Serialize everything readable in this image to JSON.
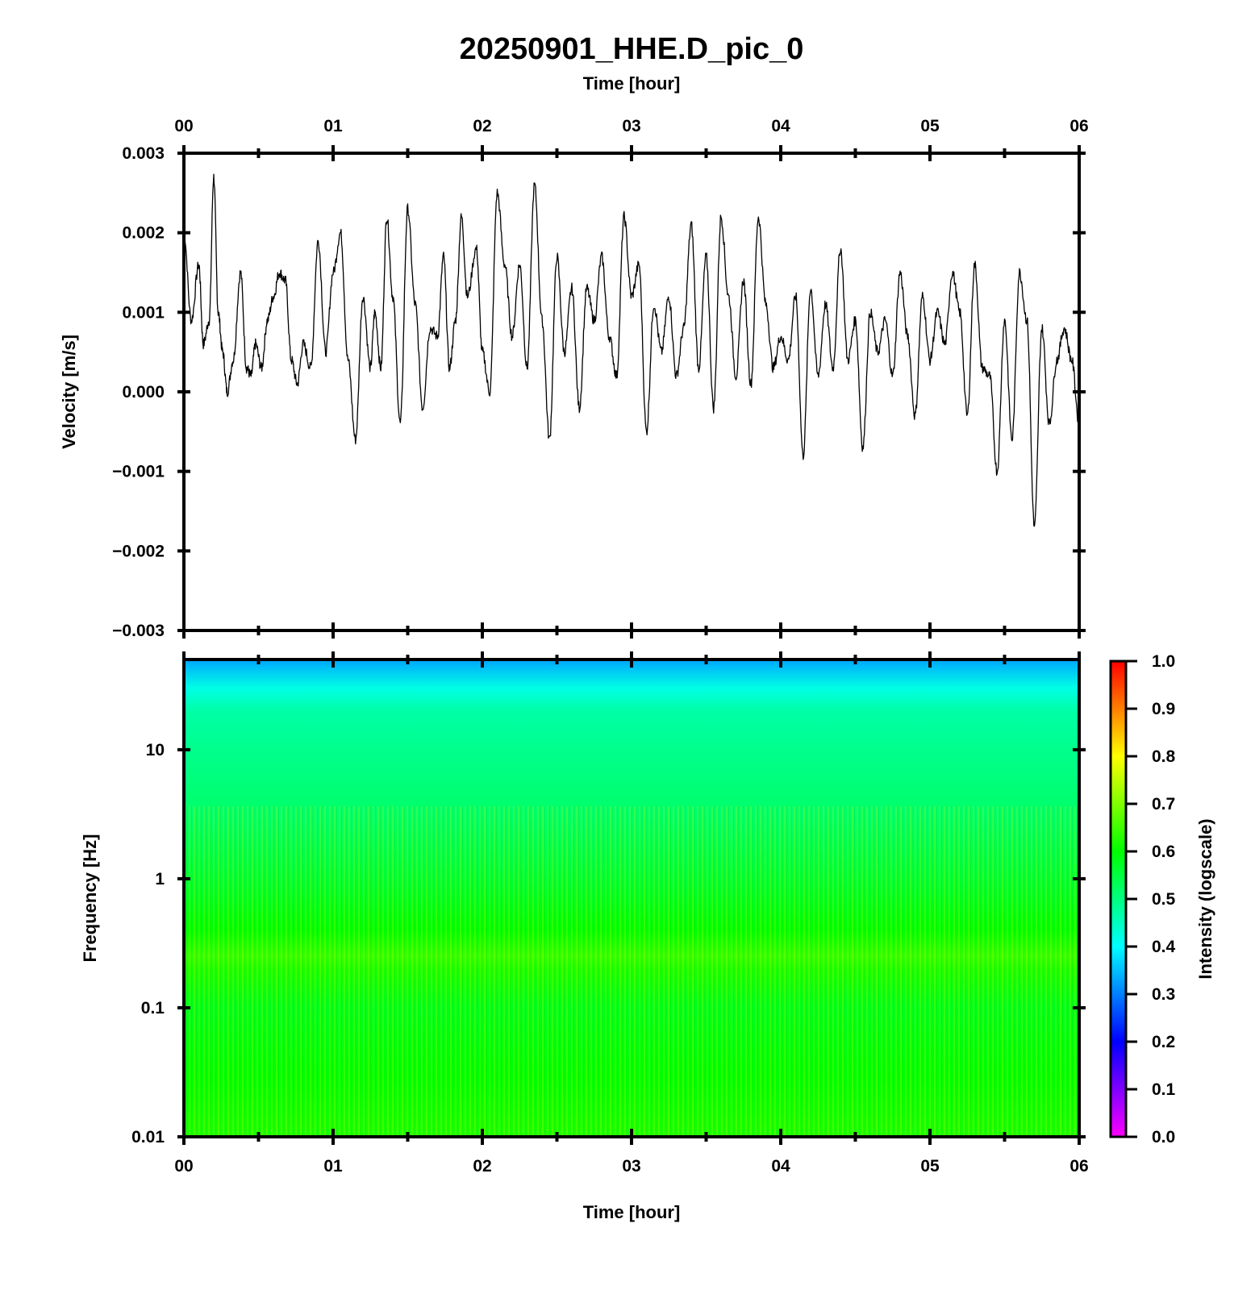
{
  "chart_data": [
    {
      "type": "line",
      "title": "20250901_HHE.D_pic_0",
      "xlabel": "Time [hour]",
      "ylabel": "Velocity [m/s]",
      "xlim": [
        0,
        6
      ],
      "ylim": [
        -0.003,
        0.003
      ],
      "x_ticks": [
        "00",
        "01",
        "02",
        "03",
        "04",
        "05",
        "06"
      ],
      "y_ticks": [
        "0.003",
        "0.002",
        "0.001",
        "0.000",
        "−0.001",
        "−0.002",
        "−0.003"
      ],
      "grid": false,
      "series": [
        {
          "color": "#000000",
          "x": [
            0.0,
            0.05,
            0.1,
            0.13,
            0.17,
            0.2,
            0.23,
            0.26,
            0.29,
            0.33,
            0.38,
            0.42,
            0.45,
            0.48,
            0.52,
            0.56,
            0.6,
            0.64,
            0.68,
            0.72,
            0.76,
            0.8,
            0.85,
            0.9,
            0.95,
            1.0,
            1.05,
            1.1,
            1.15,
            1.2,
            1.25,
            1.28,
            1.32,
            1.36,
            1.4,
            1.45,
            1.5,
            1.55,
            1.6,
            1.65,
            1.7,
            1.74,
            1.78,
            1.82,
            1.86,
            1.9,
            1.96,
            2.0,
            2.05,
            2.1,
            2.15,
            2.2,
            2.25,
            2.3,
            2.35,
            2.4,
            2.45,
            2.5,
            2.55,
            2.6,
            2.65,
            2.7,
            2.75,
            2.8,
            2.85,
            2.9,
            2.95,
            3.0,
            3.05,
            3.1,
            3.15,
            3.2,
            3.25,
            3.3,
            3.35,
            3.4,
            3.45,
            3.5,
            3.55,
            3.6,
            3.65,
            3.7,
            3.75,
            3.8,
            3.85,
            3.9,
            3.95,
            4.0,
            4.05,
            4.1,
            4.15,
            4.2,
            4.25,
            4.3,
            4.35,
            4.4,
            4.45,
            4.5,
            4.55,
            4.6,
            4.65,
            4.7,
            4.75,
            4.8,
            4.85,
            4.9,
            4.95,
            5.0,
            5.05,
            5.1,
            5.15,
            5.2,
            5.25,
            5.3,
            5.35,
            5.4,
            5.45,
            5.5,
            5.55,
            5.6,
            5.65,
            5.7,
            5.75,
            5.8,
            5.85,
            5.9,
            5.95,
            6.0
          ],
          "y": [
            0.002,
            0.0009,
            0.0016,
            0.0006,
            0.0009,
            0.0027,
            0.001,
            0.0005,
            0.0,
            0.0004,
            0.0015,
            0.0003,
            0.0002,
            0.0006,
            0.0003,
            0.0009,
            0.0012,
            0.0015,
            0.0014,
            0.0004,
            0.0001,
            0.0006,
            0.0003,
            0.0019,
            0.0005,
            0.0015,
            0.002,
            0.0004,
            -0.0006,
            0.0012,
            0.0003,
            0.001,
            0.0003,
            0.0022,
            0.0012,
            -0.0004,
            0.0023,
            0.0011,
            -0.0002,
            0.0008,
            0.0007,
            0.0017,
            0.0003,
            0.0009,
            0.0022,
            0.0012,
            0.0018,
            0.0005,
            0.0,
            0.0025,
            0.0016,
            0.0007,
            0.0016,
            0.0003,
            0.0026,
            0.0009,
            -0.0006,
            0.0017,
            0.0005,
            0.0013,
            -0.0002,
            0.0013,
            0.0009,
            0.0017,
            0.0007,
            0.0002,
            0.0022,
            0.0012,
            0.0016,
            -0.0005,
            0.0011,
            0.0005,
            0.0012,
            0.0002,
            0.0008,
            0.0021,
            0.0003,
            0.0017,
            -0.0002,
            0.0022,
            0.0012,
            0.0002,
            0.0014,
            0.0001,
            0.0022,
            0.0011,
            0.0003,
            0.0007,
            0.0004,
            0.0012,
            -0.0008,
            0.0013,
            0.0002,
            0.0011,
            0.0003,
            0.0018,
            0.0004,
            0.0009,
            -0.0007,
            0.001,
            0.0005,
            0.0009,
            0.0002,
            0.0015,
            0.0007,
            -0.0003,
            0.0012,
            0.0004,
            0.001,
            0.0006,
            0.0015,
            0.001,
            -0.0003,
            0.0016,
            0.0003,
            0.0002,
            -0.001,
            0.0009,
            -0.0006,
            0.0015,
            0.0009,
            -0.0017,
            0.0008,
            -0.0004,
            0.0004,
            0.0008,
            0.0004,
            -0.0004
          ]
        }
      ]
    },
    {
      "type": "heatmap",
      "xlabel": "Time [hour]",
      "ylabel": "Frequency [Hz]",
      "xlim": [
        0,
        6
      ],
      "ylim": [
        0.01,
        50
      ],
      "y_scale": "log",
      "x_ticks": [
        "00",
        "01",
        "02",
        "03",
        "04",
        "05",
        "06"
      ],
      "y_ticks": [
        "10",
        "1",
        "0.1",
        "0.01"
      ],
      "colorbar": {
        "label": "Intensity (logscale)",
        "range": [
          0.0,
          1.0
        ],
        "ticks": [
          "1.0",
          "0.9",
          "0.8",
          "0.7",
          "0.6",
          "0.5",
          "0.4",
          "0.3",
          "0.2",
          "0.1",
          "0.0"
        ],
        "colors": [
          "#ff00ff",
          "#0000ff",
          "#00ffff",
          "#00ff00",
          "#ffff00",
          "#ff0000"
        ]
      },
      "intensity_profile": {
        "frequency_hz": [
          0.01,
          0.03,
          0.1,
          0.2,
          0.25,
          0.4,
          1,
          3,
          10,
          20,
          30,
          50
        ],
        "intensity": [
          0.62,
          0.6,
          0.58,
          0.62,
          0.64,
          0.6,
          0.56,
          0.52,
          0.49,
          0.47,
          0.42,
          0.33
        ]
      }
    }
  ]
}
